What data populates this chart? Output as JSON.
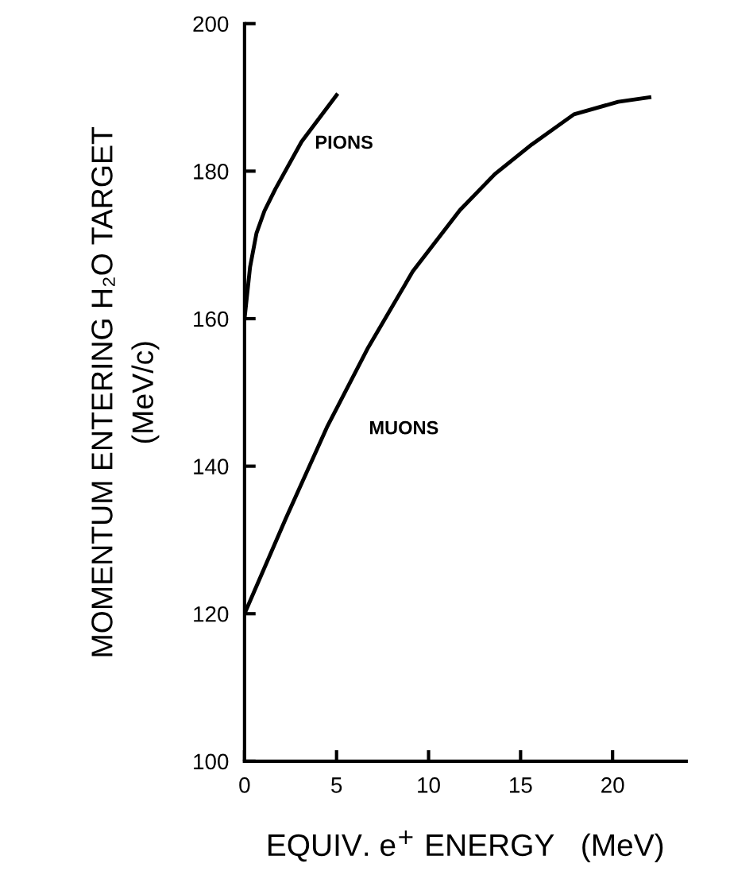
{
  "chart_data": {
    "type": "line",
    "xlabel": "EQUIV. e$^{+}$ ENERGY   (MeV)",
    "ylabel": "MOMENTUM ENTERING H₂O TARGET\n(MeV/c)",
    "series": [
      {
        "name": "PIONS",
        "color": "#000000",
        "x": [
          0,
          0.3,
          0.65,
          1.08,
          1.68,
          3.1,
          5
        ],
        "values": [
          160,
          167,
          171.6,
          174.6,
          177.6,
          184,
          190.3
        ]
      },
      {
        "name": "MUONS",
        "color": "#000000",
        "x": [
          0,
          2.24,
          4.48,
          6.72,
          9.14,
          11.7,
          13.6,
          15.6,
          17.9,
          20.3,
          22
        ],
        "values": [
          120,
          132.9,
          145.3,
          156.1,
          166.4,
          174.7,
          179.6,
          183.6,
          187.7,
          189.4,
          190
        ]
      }
    ],
    "xlim": [
      0,
      24
    ],
    "xticks": [
      0,
      5,
      10,
      15,
      20
    ],
    "ylim": [
      100,
      200
    ],
    "yticks": [
      100,
      120,
      140,
      160,
      180,
      200
    ],
    "grid": false,
    "legend": false,
    "marker": "none",
    "line_style": "solid"
  }
}
